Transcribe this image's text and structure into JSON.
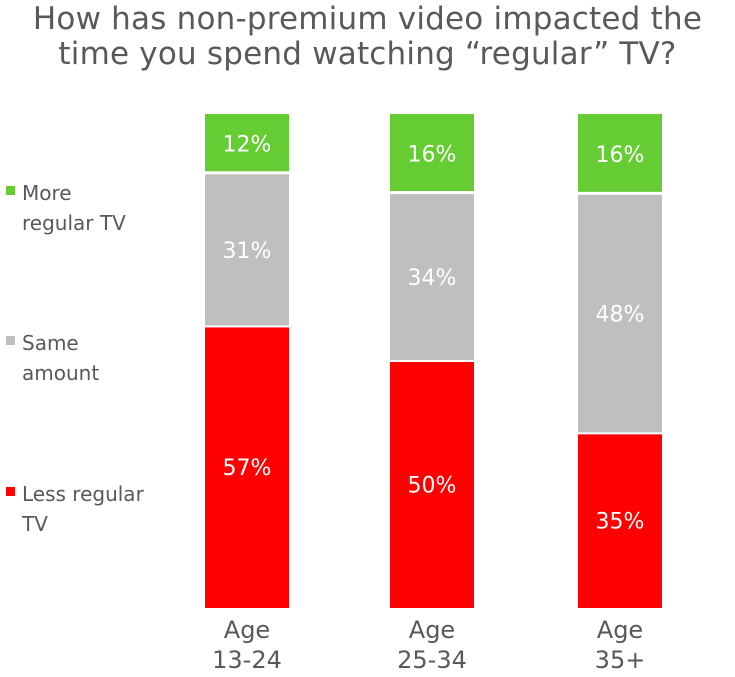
{
  "chart_data": {
    "type": "bar",
    "stacked": true,
    "title": "How has non-premium video impacted the time you spend watching “regular” TV?",
    "title_lines": [
      "How has non-premium video impacted the",
      "time you spend watching “regular” TV?"
    ],
    "categories": [
      "Age\n13-24",
      "Age\n25-34",
      "Age\n35+"
    ],
    "series": [
      {
        "name": "Less regular TV",
        "color": "#ff0000",
        "values": [
          57,
          50,
          35
        ],
        "labels": [
          "57%",
          "50%",
          "35%"
        ]
      },
      {
        "name": "Same amount",
        "color": "#bfbfbf",
        "values": [
          31,
          34,
          48
        ],
        "labels": [
          "31%",
          "34%",
          "48%"
        ]
      },
      {
        "name": "More regular TV",
        "color": "#66cc33",
        "values": [
          12,
          16,
          16
        ],
        "labels": [
          "12%",
          "16%",
          "16%"
        ]
      }
    ],
    "ylim": [
      0,
      100
    ],
    "legend_position": "left",
    "grid": false
  },
  "legend": [
    {
      "label": "More\nregular TV",
      "color": "#66cc33"
    },
    {
      "label": "Same\namount",
      "color": "#bfbfbf"
    },
    {
      "label": "Less regular\nTV",
      "color": "#ff0000"
    }
  ]
}
